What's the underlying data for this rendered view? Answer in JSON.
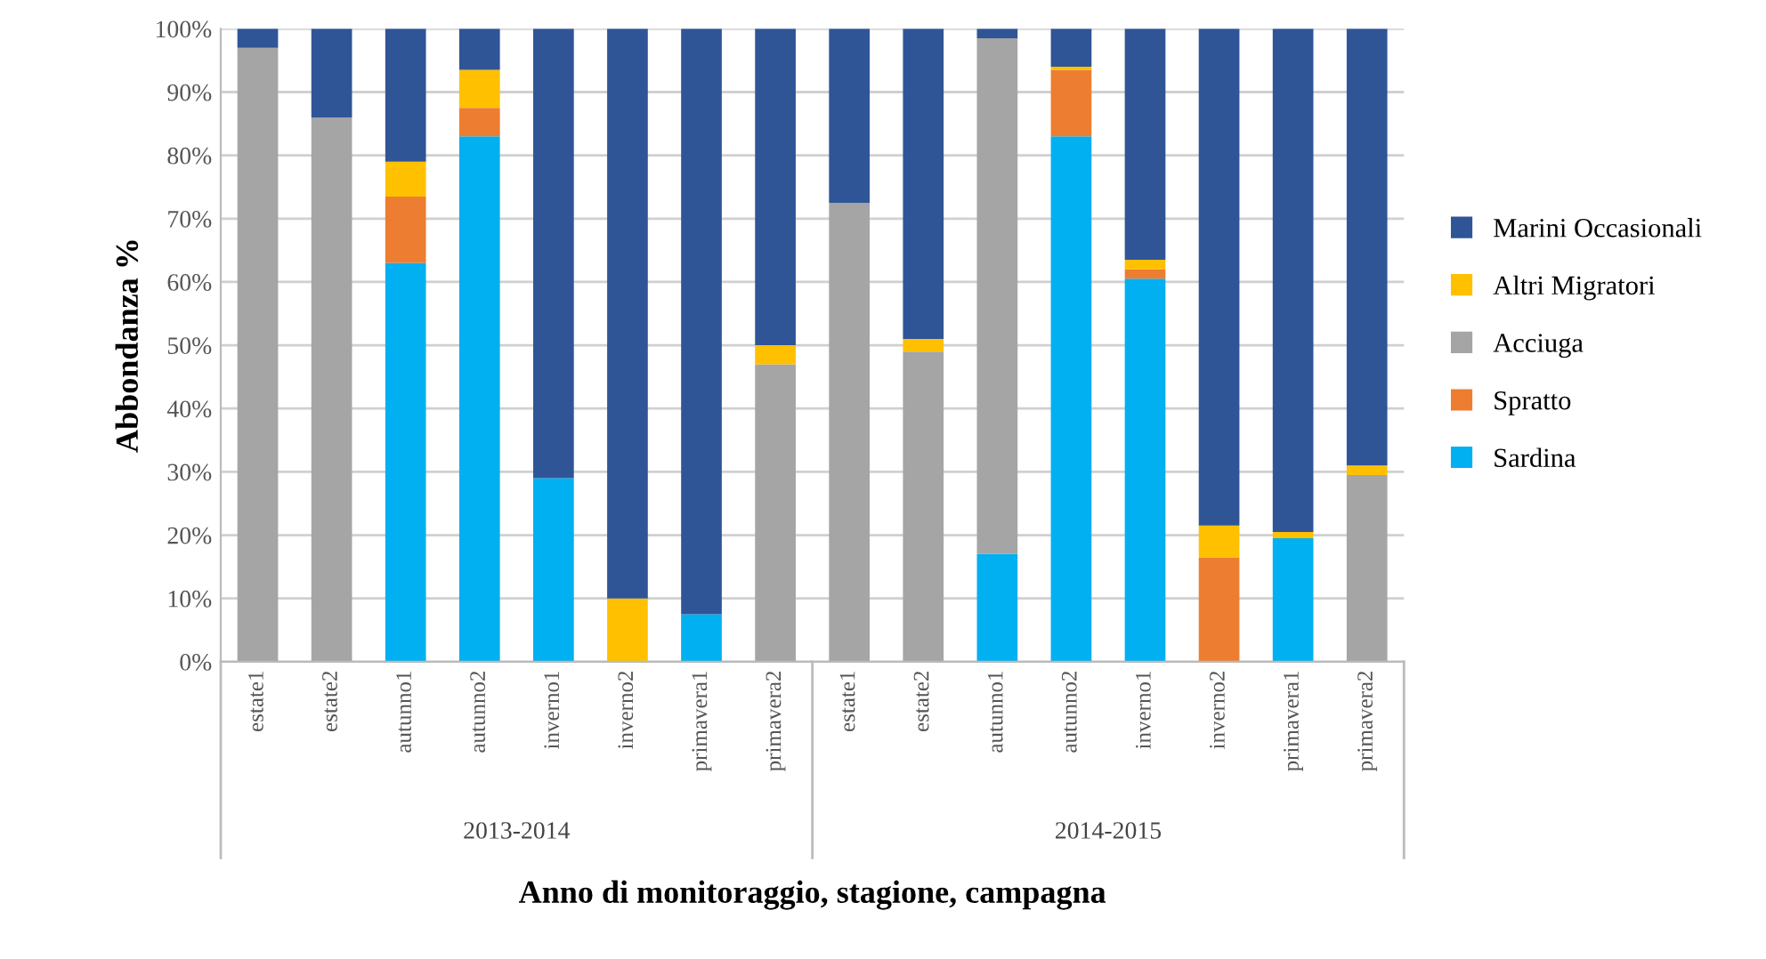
{
  "chart_data": {
    "type": "bar",
    "stacked": true,
    "xlabel": "Anno di monitoraggio, stagione, campagna",
    "ylabel": "Abbondanza %",
    "categories": [
      "estate1",
      "estate2",
      "autunno1",
      "autunno2",
      "inverno1",
      "inverno2",
      "primavera1",
      "primavera2",
      "estate1",
      "estate2",
      "autunno1",
      "autunno2",
      "inverno1",
      "inverno2",
      "primavera1",
      "primavera2"
    ],
    "annotations": [
      "2013-2014",
      "2014-2015"
    ],
    "series": [
      {
        "name": "Sardina",
        "color": "#00b0f0",
        "values": [
          0,
          0,
          63,
          83,
          29,
          0,
          7.5,
          0,
          0,
          0,
          17,
          83,
          60.5,
          0,
          19.5,
          0
        ]
      },
      {
        "name": "Spratto",
        "color": "#ed7d31",
        "values": [
          0,
          0,
          10.5,
          4.5,
          0,
          0,
          0,
          0,
          0,
          0,
          0,
          10.5,
          1.5,
          16.5,
          0,
          0
        ]
      },
      {
        "name": "Acciuga",
        "color": "#a5a5a5",
        "values": [
          97,
          86,
          0,
          0,
          0,
          0,
          0,
          47,
          72.5,
          49,
          81.5,
          0,
          0,
          0,
          0,
          29.5
        ]
      },
      {
        "name": "Altri Migratori",
        "color": "#ffc000",
        "values": [
          0,
          0,
          5.5,
          6,
          0,
          10,
          0,
          3,
          0,
          2,
          0,
          0.5,
          1.5,
          5,
          1,
          1.5
        ]
      },
      {
        "name": "Marini Occasionali",
        "color": "#2f5597",
        "values": [
          3,
          14,
          21,
          6.5,
          71,
          90,
          92.5,
          50,
          27.5,
          49,
          1.5,
          6,
          36.5,
          78.5,
          79.5,
          69
        ]
      }
    ],
    "ylim": [
      0,
      100
    ],
    "yticks": [
      {
        "value": 0,
        "label": "0%"
      },
      {
        "value": 10,
        "label": "10%"
      },
      {
        "value": 20,
        "label": "20%"
      },
      {
        "value": 30,
        "label": "30%"
      },
      {
        "value": 40,
        "label": "40%"
      },
      {
        "value": 50,
        "label": "50%"
      },
      {
        "value": 60,
        "label": "60%"
      },
      {
        "value": 70,
        "label": "70%"
      },
      {
        "value": 80,
        "label": "80%"
      },
      {
        "value": 90,
        "label": "90%"
      },
      {
        "value": 100,
        "label": "100%"
      }
    ],
    "grid": "y",
    "legend": "right"
  }
}
